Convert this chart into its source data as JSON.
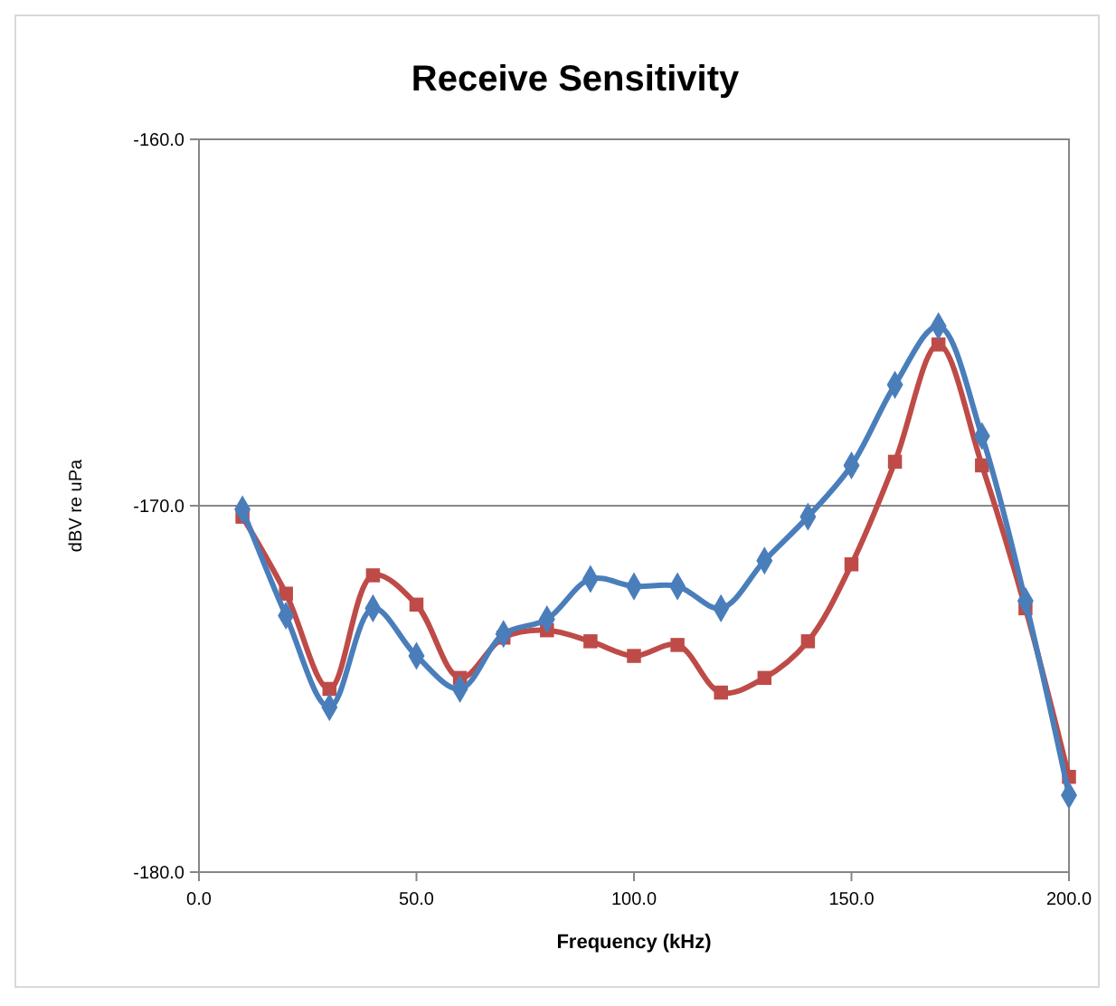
{
  "chart_data": {
    "type": "line",
    "title": "Receive Sensitivity",
    "xlabel": "Frequency (kHz)",
    "ylabel": "dBV re uPa",
    "x": [
      10,
      20,
      30,
      40,
      50,
      60,
      70,
      80,
      90,
      100,
      110,
      120,
      130,
      140,
      150,
      160,
      170,
      180,
      190,
      200
    ],
    "series": [
      {
        "color": "#4a7ebb",
        "marker": "diamond",
        "values": [
          -170.1,
          -173.0,
          -175.5,
          -172.8,
          -174.1,
          -175.0,
          -173.5,
          -173.1,
          -172.0,
          -172.2,
          -172.2,
          -172.8,
          -171.5,
          -170.3,
          -168.9,
          -166.7,
          -165.1,
          -168.1,
          -172.6,
          -177.9
        ]
      },
      {
        "color": "#be4b48",
        "marker": "square",
        "values": [
          -170.3,
          -172.4,
          -175.0,
          -171.9,
          -172.7,
          -174.7,
          -173.6,
          -173.4,
          -173.7,
          -174.1,
          -173.8,
          -175.1,
          -174.7,
          -173.7,
          -171.6,
          -168.8,
          -165.6,
          -168.9,
          -172.8,
          -177.4
        ]
      }
    ],
    "xlim": [
      0,
      200
    ],
    "xticks": [
      {
        "value": 0,
        "label": "0.0"
      },
      {
        "value": 50,
        "label": "50.0"
      },
      {
        "value": 100,
        "label": "100.0"
      },
      {
        "value": 150,
        "label": "150.0"
      },
      {
        "value": 200,
        "label": "200.0"
      }
    ],
    "ylim": [
      -180,
      -160
    ],
    "yticks": [
      {
        "value": -180,
        "label": "-180.0"
      },
      {
        "value": -170,
        "label": "-170.0"
      },
      {
        "value": -160,
        "label": "-160.0"
      }
    ],
    "grid": "y"
  }
}
